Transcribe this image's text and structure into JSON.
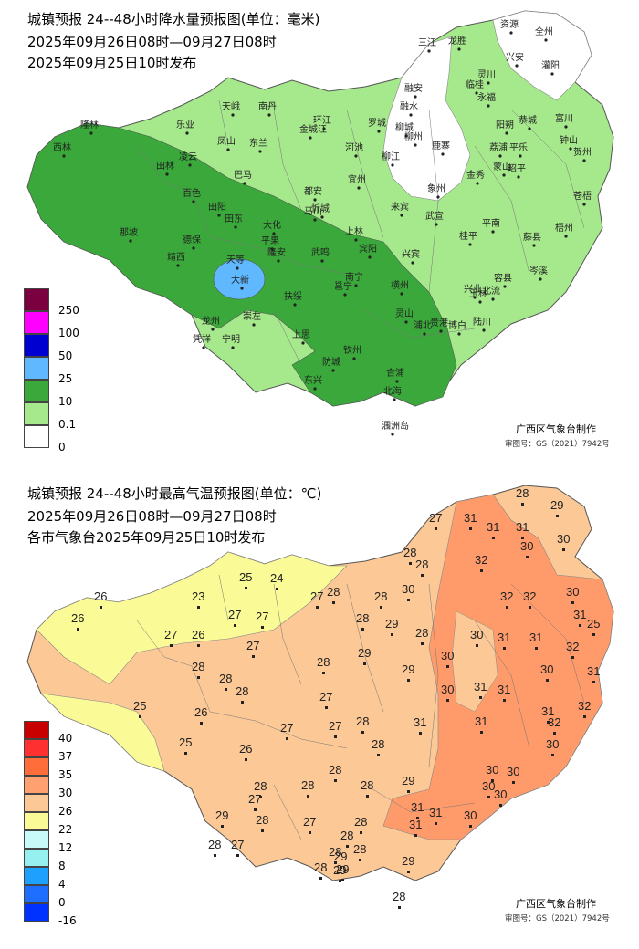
{
  "precip": {
    "title": "城镇预报 24--48小时降水量预报图(单位：毫米)",
    "period": "2025年09月26日08时—09月27日08时",
    "issued": "2025年09月25日10时发布",
    "legend": [
      {
        "label": "250",
        "color": "#7a0040"
      },
      {
        "label": "100",
        "color": "#ff00ff"
      },
      {
        "label": "50",
        "color": "#0000d0"
      },
      {
        "label": "25",
        "color": "#60b8ff"
      },
      {
        "label": "10",
        "color": "#3aa83a"
      },
      {
        "label": "0.1",
        "color": "#a6e88c"
      },
      {
        "label": "0",
        "color": "#ffffff"
      }
    ],
    "credit": "广西区气象台制作",
    "review_no": "审图号：GS（2021）7942号",
    "cities": [
      "三江",
      "龙胜",
      "资源",
      "全州",
      "兴安",
      "灌阳",
      "灵川",
      "临桂",
      "融安",
      "融水",
      "环江",
      "南丹",
      "天峨",
      "乐业",
      "隆林",
      "西林",
      "凌云",
      "田林",
      "凤山",
      "东兰",
      "罗城",
      "河池",
      "金城江",
      "宜州",
      "巴马",
      "都安",
      "忻城",
      "来宾",
      "柳州",
      "鹿寨",
      "象州",
      "武宣",
      "金秀",
      "荔浦",
      "平乐",
      "阳朔",
      "恭城",
      "富川",
      "钟山",
      "贺州",
      "昭平",
      "蒙山",
      "苍梧",
      "梧州",
      "藤县",
      "平南",
      "桂平",
      "岑溪",
      "容县",
      "北流",
      "玉林",
      "陆川",
      "博白",
      "百色",
      "田阳",
      "田东",
      "平果",
      "德保",
      "那坡",
      "靖西",
      "天等",
      "大新",
      "隆安",
      "马山",
      "上林",
      "宾阳",
      "武鸣",
      "南宁",
      "邕宁",
      "横州",
      "扶绥",
      "崇左",
      "龙州",
      "凭祥",
      "宁明",
      "上思",
      "钦州",
      "灵山",
      "浦北",
      "防城",
      "东兴",
      "合浦",
      "北海",
      "涠洲岛",
      "贵港",
      "兴宾",
      "柳江",
      "柳城",
      "永福",
      "兴业",
      "大化"
    ]
  },
  "temp": {
    "title": "城镇预报 24--48小时最高气温预报图(单位：℃)",
    "period": "2025年09月26日08时—09月27日08时",
    "issued": "各市气象台2025年09月25日10时发布",
    "legend": [
      {
        "label": "40",
        "color": "#c80000"
      },
      {
        "label": "37",
        "color": "#ff3030"
      },
      {
        "label": "35",
        "color": "#ff6e3a"
      },
      {
        "label": "30",
        "color": "#ffa070"
      },
      {
        "label": "26",
        "color": "#fcc896"
      },
      {
        "label": "22",
        "color": "#fafa96"
      },
      {
        "label": "12",
        "color": "#c8fafa"
      },
      {
        "label": "8",
        "color": "#96f0f0"
      },
      {
        "label": "4",
        "color": "#1ea0ff"
      },
      {
        "label": "0",
        "color": "#1e6eff"
      },
      {
        "label": "-16",
        "color": "#0032ff"
      }
    ],
    "credit": "广西区气象台制作",
    "review_no": "审图号：GS（2021）7942号",
    "values": [
      "27",
      "31",
      "28",
      "29",
      "31",
      "31",
      "30",
      "30",
      "28",
      "28",
      "32",
      "25",
      "24",
      "23",
      "26",
      "26",
      "27",
      "27",
      "27",
      "28",
      "28",
      "30",
      "32",
      "32",
      "30",
      "31",
      "25",
      "27",
      "26",
      "28",
      "29",
      "28",
      "30",
      "31",
      "31",
      "32",
      "31",
      "28",
      "28",
      "27",
      "28",
      "29",
      "29",
      "30",
      "30",
      "31",
      "31",
      "30",
      "32",
      "32",
      "25",
      "26",
      "28",
      "27",
      "27",
      "31",
      "31",
      "31",
      "25",
      "26",
      "28",
      "27",
      "28",
      "28",
      "28",
      "28",
      "29",
      "31",
      "31",
      "30",
      "30",
      "27",
      "28",
      "27",
      "29",
      "28",
      "27",
      "28",
      "31",
      "30",
      "30",
      "30",
      "28",
      "29",
      "28",
      "28",
      "28",
      "30",
      "29",
      "28",
      "28",
      "29",
      "29"
    ]
  }
}
